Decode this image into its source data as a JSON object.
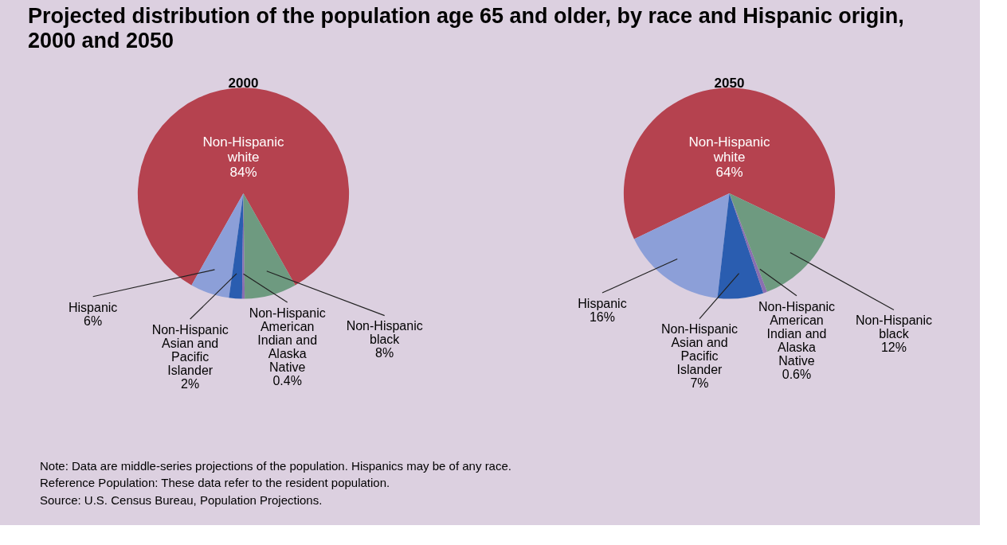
{
  "chart_data": [
    {
      "type": "other",
      "title": "Projected distribution of the population age 65 and older, by race and Hispanic origin, 2000 and 2050",
      "annotations": [
        "Note: Data are middle-series projections of the population. Hispanics may be of any race.",
        "Reference Population:  These data refer to the resident population.",
        "Source: U.S. Census Bureau, Population Projections."
      ]
    },
    {
      "type": "pie",
      "title": "2000",
      "categories": [
        "Non-Hispanic white",
        "Hispanic",
        "Non-Hispanic Asian and Pacific Islander",
        "Non-Hispanic American Indian and Alaska Native",
        "Non-Hispanic black"
      ],
      "values": [
        84,
        6,
        2,
        0.4,
        8
      ],
      "value_labels": [
        "84%",
        "6%",
        "2%",
        "0.4%",
        "8%"
      ],
      "colors": [
        "#b5424f",
        "#8c9fd8",
        "#2a5db0",
        "#8a6fb0",
        "#6e9a80"
      ]
    },
    {
      "type": "pie",
      "title": "2050",
      "categories": [
        "Non-Hispanic white",
        "Hispanic",
        "Non-Hispanic Asian and Pacific Islander",
        "Non-Hispanic American Indian and Alaska Native",
        "Non-Hispanic black"
      ],
      "values": [
        64,
        16,
        7,
        0.6,
        12
      ],
      "value_labels": [
        "64%",
        "16%",
        "7%",
        "0.6%",
        "12%"
      ],
      "colors": [
        "#b5424f",
        "#8c9fd8",
        "#2a5db0",
        "#8a6fb0",
        "#6e9a80"
      ]
    }
  ]
}
